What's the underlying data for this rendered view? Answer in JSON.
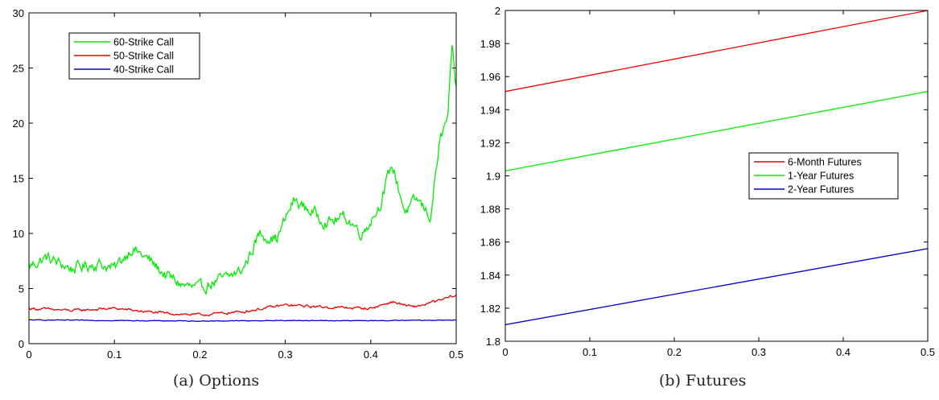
{
  "captions": [
    "(a)  Options",
    "(b)  Futures"
  ],
  "chart_data": [
    {
      "type": "line",
      "xlim": [
        0,
        0.5
      ],
      "ylim": [
        0,
        30
      ],
      "xticks": [
        "0",
        "0.1",
        "0.2",
        "0.3",
        "0.4",
        "0.5"
      ],
      "yticks": [
        "0",
        "5",
        "10",
        "15",
        "20",
        "25",
        "30"
      ],
      "legend_position": "top-left",
      "grid": false,
      "series": [
        {
          "name": "60-Strike Call",
          "color": "#00ee00",
          "noise": 0.55,
          "x": [
            0,
            0.02,
            0.05,
            0.08,
            0.1,
            0.12,
            0.14,
            0.16,
            0.18,
            0.2,
            0.21,
            0.23,
            0.25,
            0.27,
            0.29,
            0.31,
            0.33,
            0.35,
            0.37,
            0.39,
            0.41,
            0.425,
            0.44,
            0.455,
            0.47,
            0.48,
            0.49,
            0.495,
            0.5
          ],
          "y": [
            7,
            7.8,
            6.8,
            7.3,
            6.8,
            8.7,
            7.6,
            6.2,
            5.3,
            4.9,
            5.4,
            5.9,
            6.7,
            10,
            9.5,
            13,
            12,
            11,
            11.5,
            10,
            12.5,
            16.2,
            12,
            13,
            11.5,
            18,
            20.5,
            26.5,
            23
          ]
        },
        {
          "name": "50-Strike Call",
          "color": "#ee0000",
          "noise": 0.12,
          "x": [
            0,
            0.05,
            0.1,
            0.15,
            0.2,
            0.25,
            0.3,
            0.35,
            0.4,
            0.425,
            0.45,
            0.48,
            0.5
          ],
          "y": [
            3.2,
            3,
            3.2,
            2.8,
            2.6,
            2.9,
            3.5,
            3.3,
            3.2,
            3.8,
            3.3,
            3.9,
            4.4
          ]
        },
        {
          "name": "40-Strike Call",
          "color": "#0000cc",
          "noise": 0.03,
          "x": [
            0,
            0.1,
            0.2,
            0.3,
            0.4,
            0.5
          ],
          "y": [
            2.15,
            2.1,
            2.05,
            2.1,
            2.08,
            2.15
          ]
        }
      ]
    },
    {
      "type": "line",
      "xlim": [
        0,
        0.5
      ],
      "ylim": [
        1.8,
        2
      ],
      "xticks": [
        "0",
        "0.1",
        "0.2",
        "0.3",
        "0.4",
        "0.5"
      ],
      "yticks": [
        "1.8",
        "1.82",
        "1.84",
        "1.86",
        "1.88",
        "1.9",
        "1.92",
        "1.94",
        "1.96",
        "1.98",
        "2"
      ],
      "legend_position": "center-right",
      "grid": false,
      "series": [
        {
          "name": "6-Month Futures",
          "color": "#ee0000",
          "x": [
            0,
            0.5
          ],
          "y": [
            1.951,
            2.0
          ]
        },
        {
          "name": "1-Year Futures",
          "color": "#00ee00",
          "x": [
            0,
            0.5
          ],
          "y": [
            1.903,
            1.951
          ]
        },
        {
          "name": "2-Year Futures",
          "color": "#0000cc",
          "x": [
            0,
            0.5
          ],
          "y": [
            1.81,
            1.856
          ]
        }
      ]
    }
  ]
}
